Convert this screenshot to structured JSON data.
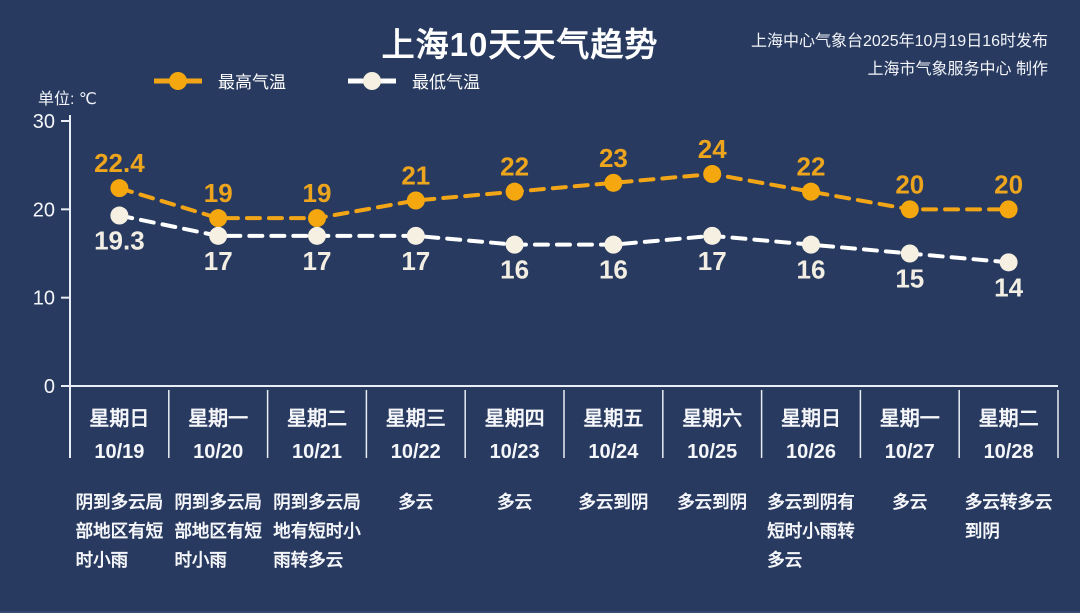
{
  "header": {
    "title": "上海10天天气趋势",
    "issued_line1": "上海中心气象台2025年10月19日16时发布",
    "issued_line2": "上海市气象服务中心 制作"
  },
  "unit_label": "单位: ℃",
  "legend": {
    "high_label": "最高气温",
    "low_label": "最低气温"
  },
  "colors": {
    "background": "#283a5f",
    "accent_orange": "#f2a516",
    "cream": "#f6efdf",
    "white_line": "#ffffff",
    "axis": "#e9edf5",
    "text": "#f5f6fa",
    "bottom_line": "#35486f"
  },
  "chart_data": {
    "type": "line",
    "title": "上海10天天气趋势",
    "ylabel": "单位: ℃",
    "ylim": [
      0,
      30
    ],
    "yticks": [
      0,
      10,
      20,
      30
    ],
    "grid": false,
    "legend_position": "top-left",
    "categories": [
      {
        "weekday": "星期日",
        "date": "10/19",
        "weather": "阴到多云局部地区有短时小雨"
      },
      {
        "weekday": "星期一",
        "date": "10/20",
        "weather": "阴到多云局部地区有短时小雨"
      },
      {
        "weekday": "星期二",
        "date": "10/21",
        "weather": "阴到多云局地有短时小雨转多云"
      },
      {
        "weekday": "星期三",
        "date": "10/22",
        "weather": "多云"
      },
      {
        "weekday": "星期四",
        "date": "10/23",
        "weather": "多云"
      },
      {
        "weekday": "星期五",
        "date": "10/24",
        "weather": "多云到阴"
      },
      {
        "weekday": "星期六",
        "date": "10/25",
        "weather": "多云到阴"
      },
      {
        "weekday": "星期日",
        "date": "10/26",
        "weather": "多云到阴有短时小雨转多云"
      },
      {
        "weekday": "星期一",
        "date": "10/27",
        "weather": "多云"
      },
      {
        "weekday": "星期二",
        "date": "10/28",
        "weather": "多云转多云到阴"
      }
    ],
    "series": [
      {
        "name": "最高气温",
        "color": "#f2a516",
        "marker_color": "#f4a70e",
        "label_color": "#eda51d",
        "values": [
          22.4,
          19,
          19,
          21,
          22,
          23,
          24,
          22,
          20,
          20
        ]
      },
      {
        "name": "最低气温",
        "color": "#ffffff",
        "marker_color": "#f6f0e2",
        "label_color": "#f2eee3",
        "values": [
          19.3,
          17,
          17,
          17,
          16,
          16,
          17,
          16,
          15,
          14
        ]
      }
    ]
  }
}
